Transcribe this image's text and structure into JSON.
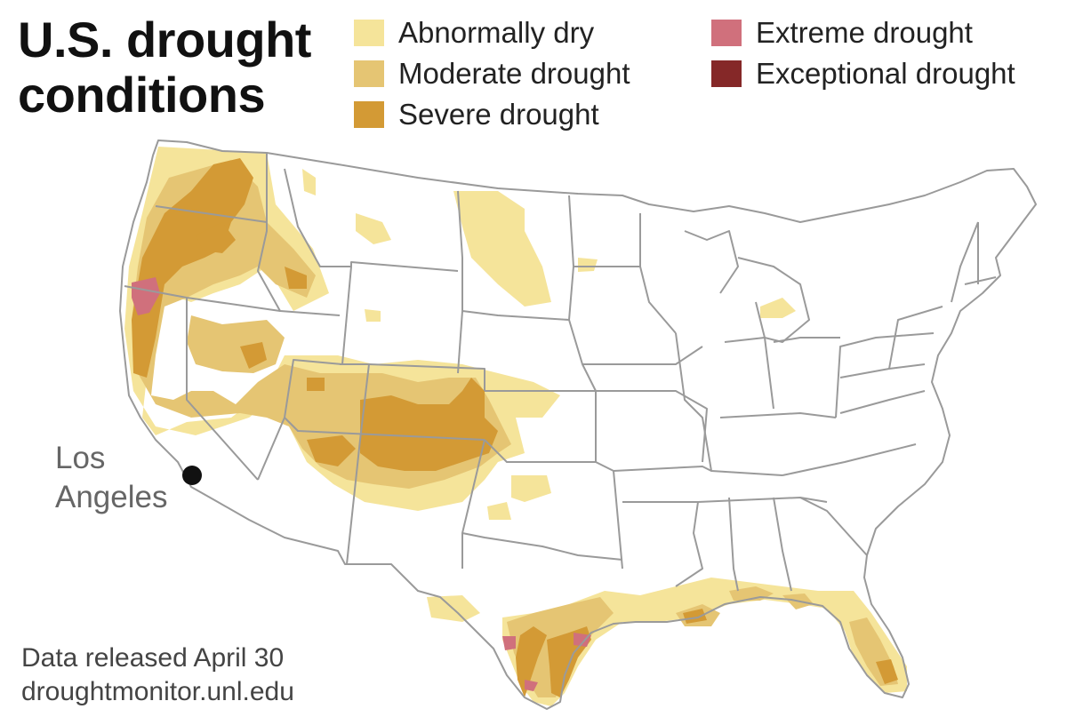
{
  "title": {
    "line1": "U.S. drought",
    "line2": "conditions"
  },
  "legend": [
    {
      "label": "Abnormally dry",
      "color": "#f5e49a"
    },
    {
      "label": "Moderate drought",
      "color": "#e5c573"
    },
    {
      "label": "Severe drought",
      "color": "#d39a35"
    },
    {
      "label": "Extreme drought",
      "color": "#d0707c"
    },
    {
      "label": "Exceptional drought",
      "color": "#852828"
    }
  ],
  "map": {
    "city": {
      "line1": "Los",
      "line2": "Angeles"
    },
    "border_color": "#9a9a9a"
  },
  "footer": {
    "released": "Data released April 30",
    "source": "droughtmonitor.unl.edu"
  }
}
